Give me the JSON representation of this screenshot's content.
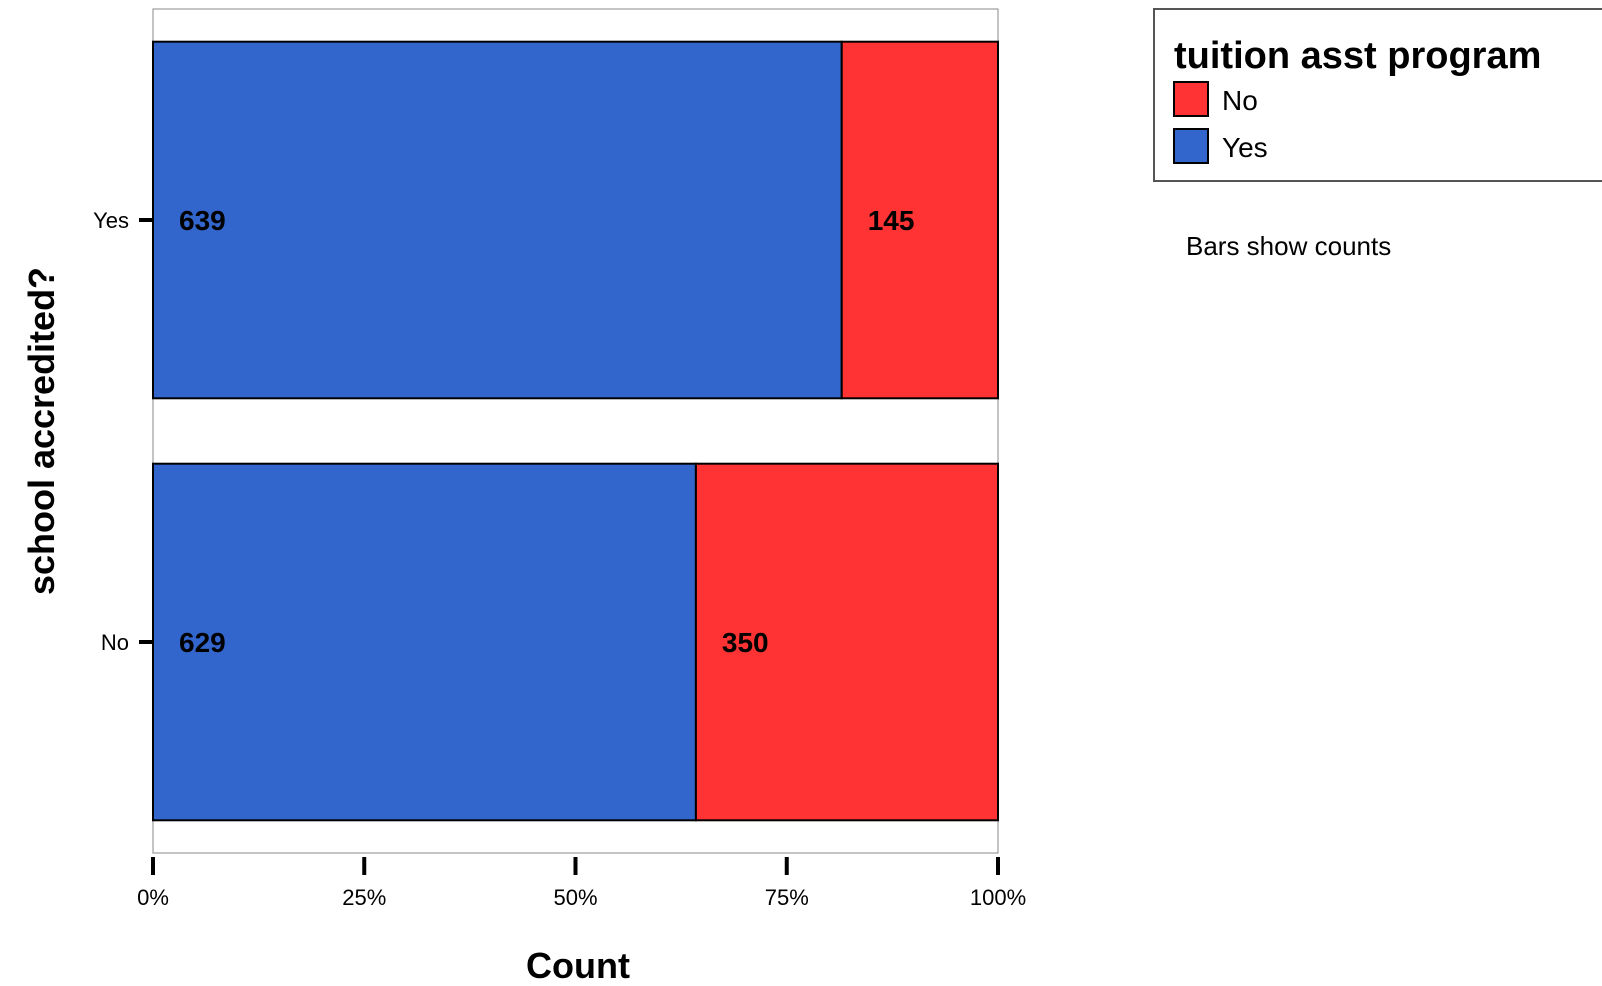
{
  "chart_data": {
    "type": "bar",
    "orientation": "horizontal",
    "stacked": "100%",
    "categories": [
      "Yes",
      "No"
    ],
    "series": [
      {
        "name": "Yes",
        "color": "#3366cc",
        "values": [
          639,
          629
        ]
      },
      {
        "name": "No",
        "color": "#ff3333",
        "values": [
          145,
          350
        ]
      }
    ],
    "xlabel": "Count",
    "ylabel": "school accredited?",
    "xticks": [
      "0%",
      "25%",
      "50%",
      "75%",
      "100%"
    ],
    "xlim": [
      0,
      100
    ],
    "legend": {
      "title": "tuition asst program",
      "entries": [
        {
          "label": "No",
          "color": "#ff3333"
        },
        {
          "label": "Yes",
          "color": "#3366cc"
        }
      ],
      "placement": "top-right"
    },
    "note": "Bars show counts",
    "grid": false
  }
}
